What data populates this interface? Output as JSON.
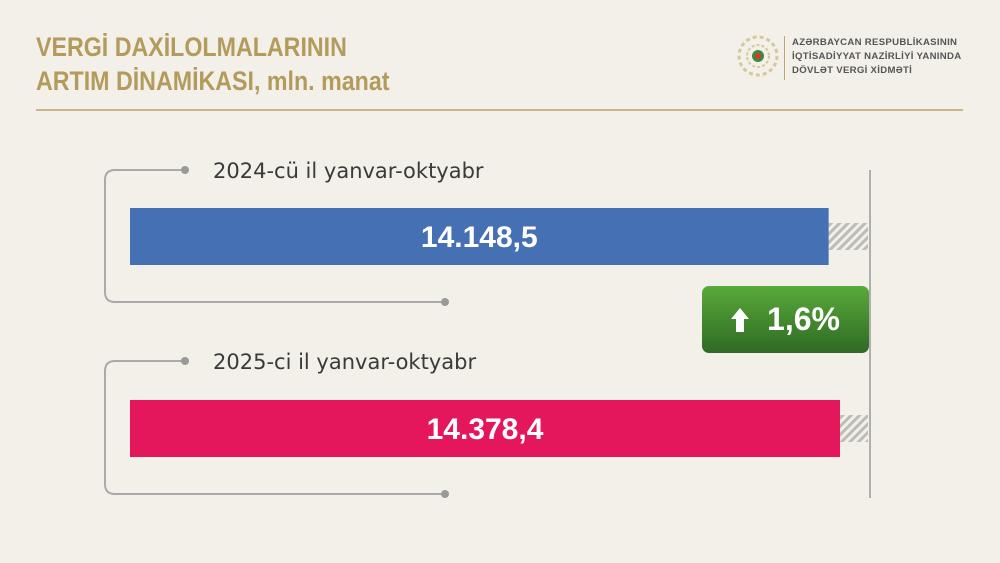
{
  "header": {
    "title_line1": "VERGİ DAXİLOLMALARININ",
    "title_line2": "ARTIM DİNAMİKASI, mln. manat",
    "org_line1": "AZƏRBAYCAN RESPUBLİKASININ",
    "org_line2": "İQTİSADİYYAT NAZİRLİYİ YANINDA",
    "org_line3": "DÖVLƏT VERGİ XİDMƏTİ"
  },
  "chart_data": {
    "type": "bar",
    "orientation": "horizontal",
    "categories": [
      "2024-cü il yanvar-oktyabr",
      "2025-ci il yanvar-oktyabr"
    ],
    "values": [
      14148.5,
      14378.4
    ],
    "value_labels": [
      "14.148,5",
      "14.378,4"
    ],
    "colors": [
      "#4570b4",
      "#e5175c"
    ],
    "change": {
      "label": "1,6%",
      "direction": "up",
      "color": "#3f8a2e"
    }
  }
}
